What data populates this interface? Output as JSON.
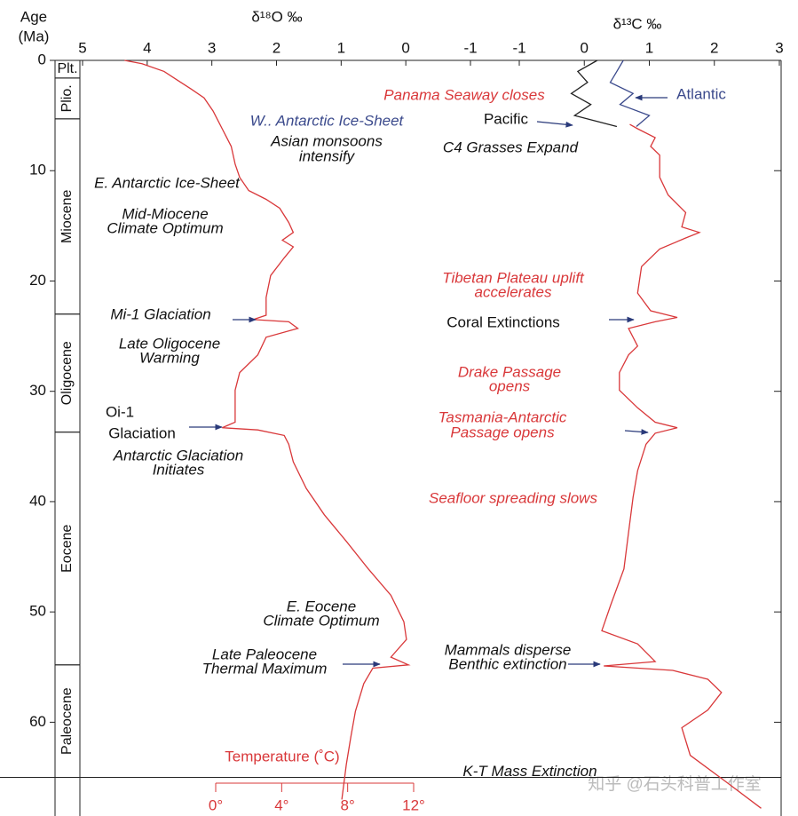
{
  "chart_data": {
    "type": "line",
    "y_label": "Age",
    "y_label_unit": "(Ma)",
    "ylim": [
      0,
      68.5
    ],
    "yticks": [
      0,
      10,
      20,
      30,
      40,
      50,
      60
    ],
    "x_label": "δ¹⁸O ‰",
    "xlim": [
      5,
      -1
    ],
    "xticks": [
      5,
      4,
      3,
      2,
      1,
      0,
      -1
    ],
    "x2_label": "δ¹³C ‰",
    "x2lim": [
      -1,
      3
    ],
    "x2ticks": [
      -1,
      0,
      1,
      2,
      3
    ],
    "series": [
      {
        "color": "#d9383a",
        "axis": "x",
        "ages": [
          0,
          0.3,
          1,
          1.8,
          2.6,
          3.4,
          4.6,
          5.4,
          6.2,
          7.8,
          9.4,
          10.6,
          11.8,
          12.6,
          13.4,
          14.7,
          15.6,
          16.3,
          16.9,
          17.9,
          19.5,
          21.5,
          23.1,
          23.5,
          23.7,
          24.3,
          25.1,
          26.7,
          28.3,
          29.9,
          31.5,
          32.8,
          33.3,
          33.5,
          34,
          34.8,
          36.4,
          38.8,
          41.2,
          43.6,
          46.1,
          48.5,
          50.9,
          52.5,
          54.1,
          54.8,
          55.1,
          56.5,
          59,
          61.3,
          63.8,
          67
        ],
        "values": [
          4.35,
          4.08,
          3.74,
          3.53,
          3.32,
          3.12,
          2.98,
          2.91,
          2.84,
          2.7,
          2.64,
          2.57,
          2.43,
          2.16,
          1.95,
          1.81,
          1.74,
          1.91,
          1.74,
          1.88,
          2.09,
          2.16,
          2.16,
          2.36,
          1.81,
          1.67,
          2.16,
          2.29,
          2.57,
          2.64,
          2.64,
          2.64,
          2.84,
          2.29,
          1.88,
          1.81,
          1.74,
          1.54,
          1.26,
          0.92,
          0.58,
          0.23,
          0.03,
          -0.01,
          0.23,
          -0.04,
          0.51,
          0.65,
          0.78,
          0.85,
          0.92,
          0.99
        ]
      },
      {
        "color": "#d9383a",
        "axis": "x2",
        "ages": [
          5.8,
          6.2,
          7,
          7.8,
          8.6,
          10.6,
          12.2,
          13.8,
          15.1,
          15.6,
          16.1,
          17.1,
          18.7,
          21.1,
          22.7,
          23.3,
          23.7,
          24.3,
          25.9,
          26.7,
          28.3,
          29.9,
          31.5,
          32.8,
          33.3,
          33.8,
          34.8,
          37.2,
          39.6,
          42.8,
          46.1,
          49.3,
          51.7,
          52.9,
          54.5,
          54.9,
          55.3,
          56.1,
          57.3,
          58.9,
          60.5,
          63,
          65.4,
          67.8
        ],
        "values": [
          0.7,
          0.82,
          1.09,
          1.02,
          1.16,
          1.16,
          1.29,
          1.56,
          1.5,
          1.77,
          1.56,
          1.16,
          0.88,
          0.82,
          1.02,
          1.43,
          1.09,
          0.68,
          0.82,
          0.68,
          0.54,
          0.54,
          0.82,
          1.09,
          1.43,
          1.09,
          0.95,
          0.82,
          0.75,
          0.68,
          0.61,
          0.41,
          0.27,
          0.82,
          1.09,
          0.3,
          1.36,
          1.9,
          2.11,
          1.9,
          1.5,
          1.63,
          2.18,
          2.72
        ]
      },
      {
        "name": "Atlantic",
        "color": "#3b4a8c",
        "axis": "x2",
        "ages": [
          0,
          1,
          2,
          3,
          4,
          5,
          6
        ],
        "values": [
          0.6,
          0.5,
          0.4,
          0.75,
          0.55,
          1.0,
          0.8
        ]
      },
      {
        "name": "Pacific",
        "color": "#222222",
        "axis": "x2",
        "ages": [
          0,
          1,
          2,
          3,
          4,
          5,
          6
        ],
        "values": [
          0.2,
          -0.1,
          0.05,
          -0.2,
          0.1,
          -0.15,
          0.5
        ]
      }
    ],
    "temperature_axis": {
      "label": "Temperature (˚C)",
      "lim": [
        0,
        12
      ],
      "ticks": [
        {
          "value": 0,
          "label": "0°"
        },
        {
          "value": 4,
          "label": "4°"
        },
        {
          "value": 8,
          "label": "8°"
        },
        {
          "value": 12,
          "label": "12°"
        }
      ]
    },
    "epochs": [
      {
        "name": "Plt.",
        "start": 0,
        "end": 1.6
      },
      {
        "name": "Plio.",
        "start": 1.6,
        "end": 5.3
      },
      {
        "name": "Miocene",
        "start": 5.3,
        "end": 23
      },
      {
        "name": "Oligocene",
        "start": 23,
        "end": 33.7
      },
      {
        "name": "Eocene",
        "start": 33.7,
        "end": 54.8
      },
      {
        "name": "Paleocene",
        "start": 54.8,
        "end": 65
      }
    ],
    "kt_boundary": {
      "age": 65,
      "label": "K-T Mass Extinction"
    },
    "annotations": [
      "Panama Seaway closes",
      "W.. Antarctic Ice-Sheet",
      "Asian monsoons",
      "intensify",
      "C4 Grasses Expand",
      "E. Antarctic Ice-Sheet",
      "Mid-Miocene",
      "Climate Optimum",
      "Tibetan Plateau uplift",
      "accelerates",
      "Mi-1 Glaciation",
      "Coral Extinctions",
      "Late Oligocene",
      "Warming",
      "Drake Passage",
      "opens",
      "Oi-1",
      "Glaciation",
      "Tasmania-Antarctic",
      "Passage opens",
      "Antarctic Glaciation",
      "Initiates",
      "Seafloor spreading slows",
      "E. Eocene",
      "Climate Optimum",
      "Late Paleocene",
      "Thermal Maximum",
      "Mammals disperse",
      "Benthic extinction"
    ],
    "watermark": "知乎 @石头科普工作室"
  }
}
